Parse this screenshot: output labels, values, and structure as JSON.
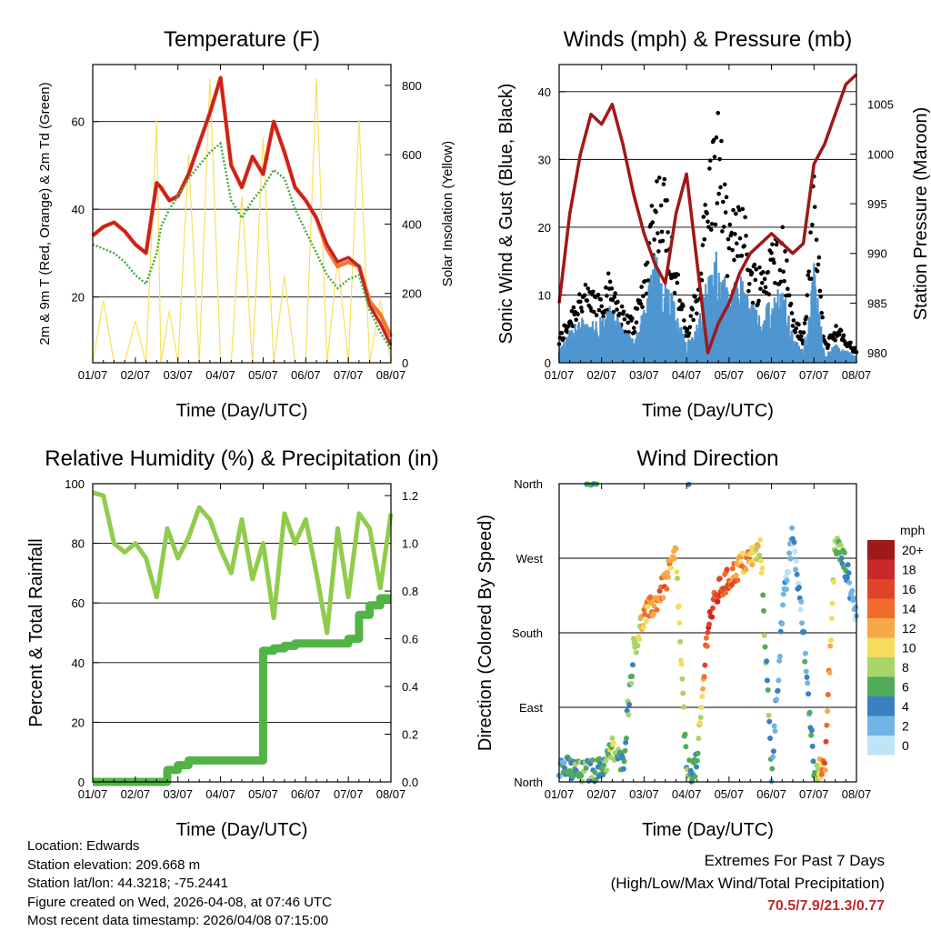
{
  "colors": {
    "temp_2m": "#cc2020",
    "temp_9m": "#f07830",
    "dewpoint": "#44aa44",
    "solar": "#f8e060",
    "wind": "#4f96d0",
    "gust": "#000000",
    "pressure": "#a01818",
    "rh": "#90cc4c",
    "precip": "#52b446",
    "extremes_text": "#c0282c"
  },
  "x_tick_labels": [
    "01/07",
    "02/07",
    "03/07",
    "04/07",
    "05/07",
    "06/07",
    "07/07",
    "08/07"
  ],
  "chart_data": [
    {
      "id": "temperature",
      "type": "line",
      "title": "Temperature (F)",
      "xlabel": "Time (Day/UTC)",
      "ylabel": "2m & 9m T (Red, Orange) & 2m Td (Green)",
      "y2label": "Solar Insolation (Yellow)",
      "xlim": [
        0,
        7
      ],
      "ylim": [
        5,
        73
      ],
      "y_ticks": [
        20,
        40,
        60
      ],
      "y2lim": [
        0,
        860
      ],
      "y2_ticks": [
        0,
        200,
        400,
        600,
        800
      ],
      "x": [
        0,
        0.25,
        0.5,
        0.75,
        1.0,
        1.25,
        1.5,
        1.6,
        1.8,
        2.0,
        2.25,
        2.5,
        2.75,
        3.0,
        3.25,
        3.5,
        3.75,
        4.0,
        4.25,
        4.5,
        4.75,
        5.0,
        5.25,
        5.5,
        5.75,
        6.0,
        6.25,
        6.5,
        6.75,
        7.0
      ],
      "series": [
        {
          "name": "2m T",
          "values": [
            34,
            36,
            37,
            35,
            32,
            30,
            46,
            45,
            42,
            43,
            48,
            55,
            62,
            70,
            50,
            45,
            52,
            48,
            60,
            53,
            45,
            42,
            38,
            32,
            28,
            29,
            27,
            18,
            14,
            9
          ]
        },
        {
          "name": "9m T",
          "values": [
            34,
            36,
            37,
            35,
            32,
            30,
            46,
            45,
            42,
            43,
            48,
            55,
            62,
            70,
            50,
            45,
            52,
            48,
            60,
            53,
            45,
            42,
            38,
            31,
            27,
            28,
            27,
            19,
            16,
            11
          ]
        },
        {
          "name": "2m Td",
          "values": [
            32,
            31,
            30,
            28,
            25,
            23,
            30,
            36,
            40,
            43,
            47,
            50,
            53,
            55,
            42,
            38,
            42,
            45,
            49,
            47,
            40,
            35,
            30,
            25,
            22,
            24,
            25,
            17,
            12,
            8
          ]
        },
        {
          "name": "Solar Insolation",
          "axis": "y2",
          "values": [
            0,
            180,
            0,
            0,
            120,
            0,
            700,
            0,
            150,
            0,
            600,
            0,
            820,
            0,
            0,
            480,
            0,
            650,
            0,
            250,
            0,
            0,
            820,
            0,
            300,
            0,
            700,
            0,
            180,
            0
          ]
        }
      ]
    },
    {
      "id": "winds",
      "type": "line",
      "title": "Winds (mph) & Pressure (mb)",
      "xlabel": "Time (Day/UTC)",
      "ylabel": "Sonic Wind & Gust (Blue, Black)",
      "y2label": "Station Pressure (Maroon)",
      "xlim": [
        0,
        7
      ],
      "ylim": [
        0,
        44
      ],
      "y_ticks": [
        0,
        10,
        20,
        30,
        40
      ],
      "y2lim": [
        979,
        1009
      ],
      "y2_ticks": [
        980,
        985,
        990,
        995,
        1000,
        1005
      ],
      "x": [
        0,
        0.25,
        0.5,
        0.75,
        1.0,
        1.25,
        1.5,
        1.75,
        2.0,
        2.25,
        2.5,
        2.75,
        3.0,
        3.25,
        3.5,
        3.75,
        4.0,
        4.25,
        4.5,
        4.75,
        5.0,
        5.25,
        5.5,
        5.75,
        6.0,
        6.25,
        6.5,
        6.75,
        7.0
      ],
      "series": [
        {
          "name": "Sonic Wind",
          "values": [
            2,
            5,
            7,
            6,
            7,
            9,
            5,
            4,
            8,
            16,
            15,
            8,
            3,
            6,
            14,
            17,
            10,
            14,
            9,
            8,
            10,
            13,
            4,
            2,
            15,
            1,
            3,
            2,
            1
          ]
        },
        {
          "name": "Gust",
          "values": [
            4,
            8,
            12,
            11,
            12,
            14,
            8,
            7,
            14,
            30,
            28,
            16,
            5,
            12,
            30,
            39,
            20,
            29,
            16,
            15,
            18,
            22,
            8,
            4,
            28,
            3,
            6,
            4,
            2
          ]
        },
        {
          "name": "Station Pressure",
          "axis": "y2",
          "values": [
            985,
            994,
            1000,
            1004,
            1003,
            1005,
            1001,
            996,
            992,
            989,
            987,
            994,
            998,
            989,
            980,
            983,
            985,
            988,
            990,
            991,
            992,
            991,
            990,
            991,
            999,
            1001,
            1004,
            1007,
            1008
          ]
        }
      ]
    },
    {
      "id": "humidity",
      "type": "line",
      "title": "Relative Humidity (%) & Precipitation (in)",
      "xlabel": "Time (Day/UTC)",
      "ylabel": "Percent & Total Rainfall",
      "xlim": [
        0,
        7
      ],
      "ylim": [
        0,
        100
      ],
      "y_ticks": [
        0,
        20,
        40,
        60,
        80,
        100
      ],
      "y2lim": [
        0,
        1.25
      ],
      "y2_ticks": [
        0.0,
        0.2,
        0.4,
        0.6,
        0.8,
        1.0,
        1.2
      ],
      "x": [
        0,
        0.25,
        0.5,
        0.75,
        1.0,
        1.25,
        1.5,
        1.75,
        2.0,
        2.25,
        2.5,
        2.75,
        3.0,
        3.25,
        3.5,
        3.75,
        4.0,
        4.25,
        4.5,
        4.75,
        5.0,
        5.25,
        5.5,
        5.75,
        6.0,
        6.25,
        6.5,
        6.75,
        7.0
      ],
      "series": [
        {
          "name": "Relative Humidity",
          "values": [
            97,
            96,
            80,
            77,
            80,
            75,
            62,
            85,
            75,
            82,
            92,
            88,
            78,
            70,
            88,
            68,
            80,
            55,
            90,
            80,
            88,
            70,
            50,
            85,
            62,
            90,
            85,
            65,
            90
          ]
        },
        {
          "name": "Total Precipitation",
          "axis": "y2",
          "values": [
            0,
            0,
            0,
            0,
            0,
            0,
            0,
            0.05,
            0.07,
            0.09,
            0.09,
            0.09,
            0.09,
            0.09,
            0.09,
            0.09,
            0.55,
            0.56,
            0.57,
            0.58,
            0.58,
            0.58,
            0.58,
            0.58,
            0.6,
            0.7,
            0.74,
            0.77,
            0.77
          ]
        }
      ]
    },
    {
      "id": "direction",
      "type": "scatter",
      "title": "Wind Direction",
      "xlabel": "Time (Day/UTC)",
      "ylabel": "Direction (Colored By Speed)",
      "xlim": [
        0,
        7
      ],
      "y_tick_labels": [
        "North",
        "East",
        "South",
        "West",
        "North"
      ],
      "legend_title": "mph",
      "legend_labels": [
        "20+",
        "18",
        "16",
        "14",
        "12",
        "10",
        "8",
        "6",
        "4",
        "2",
        "0"
      ],
      "legend_colors": [
        "#a01818",
        "#c82828",
        "#e04428",
        "#f06c2c",
        "#f8a848",
        "#f4dc5c",
        "#a8d468",
        "#52aa5a",
        "#3a80c0",
        "#72b4e4",
        "#bde4f8"
      ],
      "x": [
        0,
        0.5,
        1.0,
        1.25,
        1.5,
        1.75,
        2.0,
        2.25,
        2.5,
        2.75,
        3.0,
        3.25,
        3.5,
        3.75,
        4.0,
        4.25,
        4.5,
        4.75,
        5.0,
        5.25,
        5.5,
        5.75,
        6.0,
        6.25,
        6.5,
        6.75,
        7.0
      ],
      "direction_deg": [
        20,
        10,
        15,
        40,
        20,
        160,
        200,
        215,
        240,
        275,
        10,
        20,
        190,
        230,
        245,
        260,
        270,
        280,
        10,
        200,
        300,
        180,
        20,
        10,
        290,
        260,
        200
      ],
      "speed_mph": [
        4,
        6,
        5,
        9,
        5,
        7,
        12,
        13,
        14,
        11,
        6,
        5,
        17,
        16,
        15,
        13,
        11,
        9,
        4,
        2,
        2,
        3,
        5,
        15,
        8,
        4,
        2
      ]
    }
  ],
  "station_info": {
    "location": "Location: Edwards",
    "elevation": "Station elevation: 209.668 m",
    "latlon": "Station lat/lon: 44.3218; -75.2441",
    "created": "Figure created on Wed, 2026-04-08, at 07:46 UTC",
    "timestamp": "Most recent data timestamp: 2026/04/08 07:15:00"
  },
  "extremes": {
    "title": "Extremes For Past 7 Days",
    "subtitle": "(High/Low/Max Wind/Total Precipitation)",
    "values": "70.5/7.9/21.3/0.77"
  }
}
